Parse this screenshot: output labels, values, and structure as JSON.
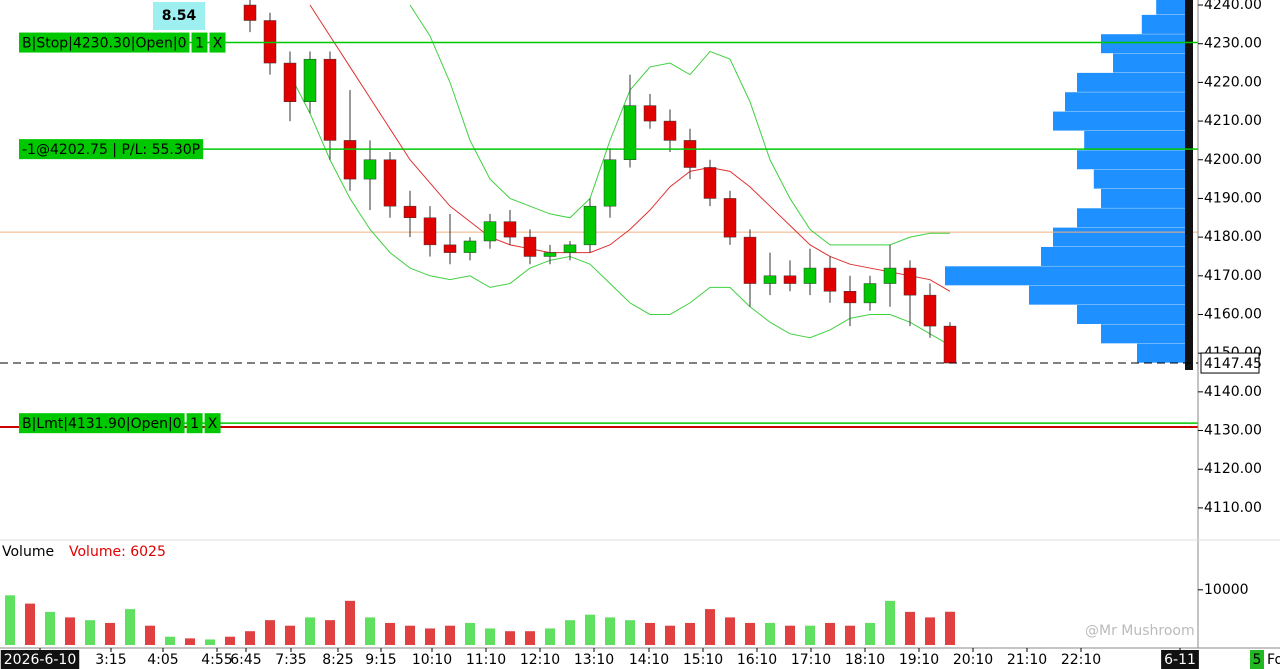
{
  "chart_data": [
    {
      "type": "candlestick",
      "badge": "8.54",
      "up_color": "#00c800",
      "down_color": "#e00000",
      "open": [
        null,
        null,
        null,
        null,
        null,
        null,
        null,
        null,
        null,
        null,
        null,
        null,
        4240,
        4236,
        4225,
        4215,
        4226,
        4205,
        4195,
        4200,
        4188,
        4185,
        4178,
        4176,
        4179,
        4184,
        4180,
        4175,
        4176,
        4178,
        4188,
        4200,
        4214,
        4210,
        4205,
        4198,
        4190,
        4180,
        4168,
        4170,
        4168,
        4172,
        4166,
        4163,
        4168,
        4172,
        4165,
        4157
      ],
      "high": [
        null,
        null,
        null,
        null,
        null,
        null,
        null,
        null,
        null,
        null,
        null,
        null,
        4243,
        4238,
        4228,
        4228,
        4228,
        4218,
        4205,
        4202,
        4192,
        4188,
        4186,
        4180,
        4186,
        4187,
        4182,
        4178,
        4179,
        4190,
        4203,
        4222,
        4217,
        4213,
        4208,
        4200,
        4192,
        4182,
        4176,
        4174,
        4177,
        4175,
        4170,
        4170,
        4178,
        4174,
        4168,
        4158
      ],
      "low": [
        null,
        null,
        null,
        null,
        null,
        null,
        null,
        null,
        null,
        null,
        null,
        null,
        4233,
        4222,
        4210,
        4212,
        4200,
        4192,
        4187,
        4185,
        4180,
        4175,
        4173,
        4174,
        4177,
        4178,
        4173,
        4173,
        4174,
        4176,
        4185,
        4198,
        4208,
        4202,
        4195,
        4188,
        4178,
        4162,
        4165,
        4166,
        4165,
        4163,
        4157,
        4161,
        4162,
        4157,
        4154,
        4147.45
      ],
      "close": [
        null,
        null,
        null,
        null,
        null,
        null,
        null,
        null,
        null,
        null,
        null,
        null,
        4236,
        4225,
        4215,
        4226,
        4205,
        4195,
        4200,
        4188,
        4185,
        4178,
        4176,
        4179,
        4184,
        4180,
        4175,
        4176,
        4178,
        4188,
        4200,
        4214,
        4210,
        4205,
        4198,
        4190,
        4180,
        4168,
        4170,
        4168,
        4172,
        4166,
        4163,
        4168,
        4172,
        4165,
        4157,
        4147.45
      ],
      "overlays": [
        {
          "color": "#e03030",
          "values": [
            null,
            null,
            null,
            null,
            null,
            null,
            null,
            null,
            null,
            null,
            null,
            null,
            null,
            null,
            null,
            4240,
            4232,
            4224,
            4216,
            4208,
            4200,
            4194,
            4188,
            4184,
            4180,
            4178,
            4177,
            4176,
            4176,
            4176,
            4178,
            4182,
            4187,
            4193,
            4197,
            4198,
            4197,
            4193,
            4188,
            4183,
            4178,
            4175,
            4173,
            4172,
            4171,
            4170,
            4169,
            4166
          ]
        },
        {
          "color": "#40d040",
          "values": [
            null,
            null,
            null,
            null,
            null,
            null,
            null,
            null,
            null,
            null,
            null,
            null,
            null,
            null,
            null,
            null,
            null,
            null,
            null,
            null,
            4240,
            4232,
            4220,
            4205,
            4195,
            4190,
            4188,
            4186,
            4185,
            4190,
            4205,
            4218,
            4224,
            4225,
            4222,
            4228,
            4226,
            4215,
            4200,
            4190,
            4182,
            4178,
            4178,
            4178,
            4178,
            4180,
            4181,
            4181
          ]
        },
        {
          "color": "#40d040",
          "values": [
            null,
            null,
            null,
            null,
            null,
            null,
            null,
            null,
            null,
            null,
            null,
            null,
            null,
            null,
            4222,
            4212,
            4200,
            4190,
            4182,
            4176,
            4172,
            4170,
            4169,
            4170,
            4167,
            4168,
            4172,
            4174,
            4175,
            4173,
            4168,
            4163,
            4160,
            4160,
            4163,
            4167,
            4167,
            4162,
            4158,
            4155,
            4154,
            4156,
            4159,
            4160,
            4160,
            4158,
            4155,
            4152
          ]
        }
      ],
      "volume_profile": {
        "color": "#1e90ff",
        "prices": [
          4150,
          4155,
          4160,
          4165,
          4170,
          4175,
          4180,
          4185,
          4190,
          4195,
          4200,
          4205,
          4210,
          4215,
          4220,
          4225,
          4230,
          4235,
          4240
        ],
        "values": [
          20,
          35,
          45,
          65,
          100,
          60,
          55,
          45,
          35,
          38,
          45,
          42,
          55,
          50,
          45,
          30,
          35,
          18,
          12
        ]
      },
      "orders": [
        {
          "label": "B|Stop|4230.30|Open|0",
          "value": 4230.3,
          "qty": "1",
          "cancel": "X",
          "color": "#00c800"
        },
        {
          "label": "-1@4202.75 | P/L: 55.30P",
          "value": 4202.75,
          "color": "#00c800"
        },
        {
          "label": "B|Lmt|4131.90|Open|0",
          "value": 4131.9,
          "qty": "1",
          "cancel": "X",
          "color": "#00c800"
        }
      ],
      "reference_lines": [
        {
          "value": 4130.9,
          "color": "#cc0000"
        },
        {
          "value": 4181.3,
          "color": "#f0b080"
        }
      ],
      "last": 4147.45,
      "ylim": [
        4101.7,
        4241.3
      ],
      "yticks": [
        {
          "value": 4240,
          "label": "4240.00"
        },
        {
          "value": 4230,
          "label": "4230.00"
        },
        {
          "value": 4220,
          "label": "4220.00"
        },
        {
          "value": 4210,
          "label": "4210.00"
        },
        {
          "value": 4200,
          "label": "4200.00"
        },
        {
          "value": 4190,
          "label": "4190.00"
        },
        {
          "value": 4180,
          "label": "4180.00"
        },
        {
          "value": 4170,
          "label": "4170.00"
        },
        {
          "value": 4160,
          "label": "4160.00"
        },
        {
          "value": 4150,
          "label": "4150.00"
        },
        {
          "value": 4140,
          "label": "4140.00"
        },
        {
          "value": 4130,
          "label": "4130.00"
        },
        {
          "value": 4120,
          "label": "4120.00"
        },
        {
          "value": 4110,
          "label": "4110.00"
        }
      ]
    },
    {
      "type": "bar",
      "title": "Volume",
      "label": "Volume: 6025",
      "values": [
        9000,
        7500,
        6000,
        5000,
        4500,
        4000,
        6500,
        3500,
        1500,
        1200,
        1000,
        1500,
        2500,
        4500,
        3500,
        5000,
        4500,
        8000,
        5000,
        4000,
        3500,
        3000,
        3500,
        4000,
        3000,
        2500,
        2500,
        3000,
        4500,
        5500,
        5000,
        4500,
        4000,
        3500,
        4000,
        6500,
        5000,
        4000,
        4000,
        3500,
        3500,
        4000,
        3500,
        4000,
        8000,
        6000,
        5000,
        6025
      ],
      "ylim": [
        0,
        15400
      ],
      "yticks": [
        10000
      ],
      "xlim": [
        -0.5,
        59.4
      ],
      "xticks": [
        {
          "value": 1.5,
          "label": "2026-6-10"
        },
        {
          "value": 5.05,
          "label": "3:15"
        },
        {
          "value": 7.65,
          "label": "4:05"
        },
        {
          "value": 10.35,
          "label": "4:55"
        },
        {
          "value": 11.8,
          "label": "6:45"
        },
        {
          "value": 14.05,
          "label": "7:35"
        },
        {
          "value": 16.4,
          "label": "8:25"
        },
        {
          "value": 18.55,
          "label": "9:15"
        },
        {
          "value": 21.1,
          "label": "10:10"
        },
        {
          "value": 23.8,
          "label": "11:10"
        },
        {
          "value": 26.5,
          "label": "12:10"
        },
        {
          "value": 29.2,
          "label": "13:10"
        },
        {
          "value": 31.95,
          "label": "14:10"
        },
        {
          "value": 34.65,
          "label": "15:10"
        },
        {
          "value": 37.35,
          "label": "16:10"
        },
        {
          "value": 40.05,
          "label": "17:10"
        },
        {
          "value": 42.75,
          "label": "18:10"
        },
        {
          "value": 45.45,
          "label": "19:10"
        },
        {
          "value": 48.15,
          "label": "20:10"
        },
        {
          "value": 50.85,
          "label": "21:10"
        },
        {
          "value": 53.55,
          "label": "22:10"
        },
        {
          "value": 58.5,
          "label": "6-11"
        }
      ]
    }
  ],
  "overlay": {
    "watermark": "@Mr Mushroom",
    "corner_badge": "5",
    "corner_text": "Fo"
  }
}
